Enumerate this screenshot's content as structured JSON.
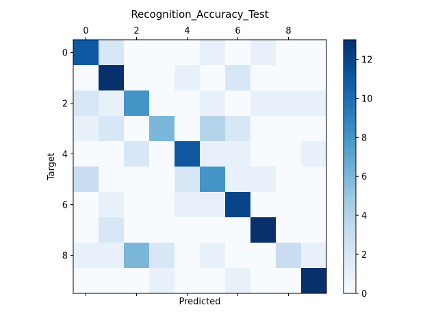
{
  "chart_data": {
    "type": "heatmap",
    "title": "Recognition_Accuracy_Test",
    "xlabel": "Predicted",
    "ylabel": "Target",
    "x_tick_labels": [
      "0",
      "2",
      "4",
      "6",
      "8"
    ],
    "y_tick_labels": [
      "0",
      "2",
      "4",
      "6",
      "8"
    ],
    "x_tick_values": [
      0,
      2,
      4,
      6,
      8
    ],
    "y_tick_values": [
      0,
      2,
      4,
      6,
      8
    ],
    "rows": 10,
    "cols": 10,
    "values": [
      [
        11,
        2,
        0,
        0,
        0,
        1,
        0,
        1,
        0,
        0
      ],
      [
        0,
        13,
        0,
        0,
        1,
        0,
        2,
        0,
        0,
        0
      ],
      [
        2,
        1,
        8,
        0,
        0,
        1,
        0,
        1,
        1,
        1
      ],
      [
        1,
        2,
        0,
        6,
        0,
        4,
        2,
        0,
        0,
        0
      ],
      [
        0,
        0,
        2,
        0,
        11,
        1,
        1,
        0,
        0,
        1
      ],
      [
        3,
        0,
        0,
        0,
        2,
        8,
        1,
        1,
        0,
        0
      ],
      [
        0,
        1,
        0,
        0,
        1,
        1,
        12,
        0,
        0,
        0
      ],
      [
        0,
        2,
        0,
        0,
        0,
        0,
        0,
        14,
        0,
        0
      ],
      [
        1,
        1,
        6,
        2,
        0,
        1,
        0,
        0,
        3,
        1
      ],
      [
        0,
        0,
        0,
        1,
        0,
        0,
        1,
        0,
        0,
        14
      ]
    ],
    "colormap": "Blues",
    "colorbar": {
      "range": [
        0,
        13
      ],
      "tick_values": [
        0,
        2,
        4,
        6,
        8,
        10,
        12
      ],
      "tick_labels": [
        "0",
        "2",
        "4",
        "6",
        "8",
        "10",
        "12"
      ]
    },
    "grid": false,
    "legend": "none"
  }
}
